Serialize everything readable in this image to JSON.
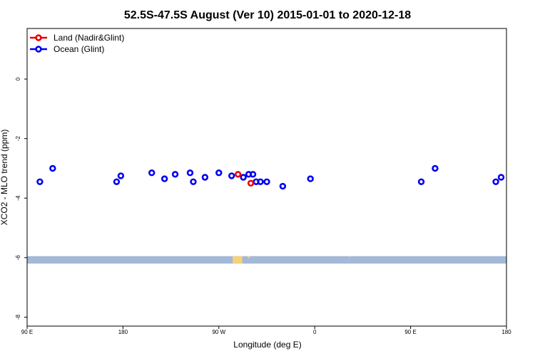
{
  "chart_data": {
    "type": "scatter",
    "title": "52.5S-47.5S August (Ver 10)   2015-01-01 to 2020-12-18",
    "xlabel": "Longitude (deg E)",
    "ylabel": "XCO2 - MLO trend (ppm)",
    "xlim": [
      90,
      540
    ],
    "ylim": [
      -8.3,
      1.7
    ],
    "x_ticks": [
      {
        "value": 90,
        "label": "90 E"
      },
      {
        "value": 180,
        "label": "180"
      },
      {
        "value": 270,
        "label": "90 W"
      },
      {
        "value": 360,
        "label": "0"
      },
      {
        "value": 450,
        "label": "90 E"
      },
      {
        "value": 540,
        "label": "180"
      }
    ],
    "y_ticks": [
      {
        "value": 0,
        "label": "0"
      },
      {
        "value": -2,
        "label": "-2"
      },
      {
        "value": -4,
        "label": "-4"
      },
      {
        "value": -6,
        "label": "-6"
      },
      {
        "value": -8,
        "label": "-8"
      }
    ],
    "legend_position": "top-left",
    "series": [
      {
        "name": "Land (Nadir&Glint)",
        "color": "#ee0000",
        "points": [
          [
            288,
            -3.2
          ],
          [
            300,
            -3.5
          ]
        ]
      },
      {
        "name": "Ocean (Glint)",
        "color": "#0000ee",
        "points": [
          [
            102,
            -3.45
          ],
          [
            114,
            -3.0
          ],
          [
            174,
            -3.45
          ],
          [
            178,
            -3.25
          ],
          [
            207,
            -3.15
          ],
          [
            219,
            -3.35
          ],
          [
            229,
            -3.2
          ],
          [
            243,
            -3.15
          ],
          [
            246,
            -3.45
          ],
          [
            257,
            -3.3
          ],
          [
            270,
            -3.15
          ],
          [
            282,
            -3.25
          ],
          [
            293,
            -3.3
          ],
          [
            298,
            -3.2
          ],
          [
            302,
            -3.2
          ],
          [
            305,
            -3.45
          ],
          [
            309,
            -3.45
          ],
          [
            315,
            -3.45
          ],
          [
            330,
            -3.6
          ],
          [
            356,
            -3.35
          ],
          [
            460,
            -3.45
          ],
          [
            473,
            -3.0
          ],
          [
            530,
            -3.45
          ],
          [
            535,
            -3.3
          ]
        ]
      }
    ],
    "map_band": {
      "y_top": -5.95,
      "y_bottom": -6.2,
      "ocean_color": "#a4b8d8",
      "land_color": "#f5d27a",
      "land_segments": [
        [
          283,
          292,
          1.0
        ],
        [
          297,
          299,
          0.25
        ],
        [
          392,
          393,
          0.15
        ]
      ]
    }
  }
}
